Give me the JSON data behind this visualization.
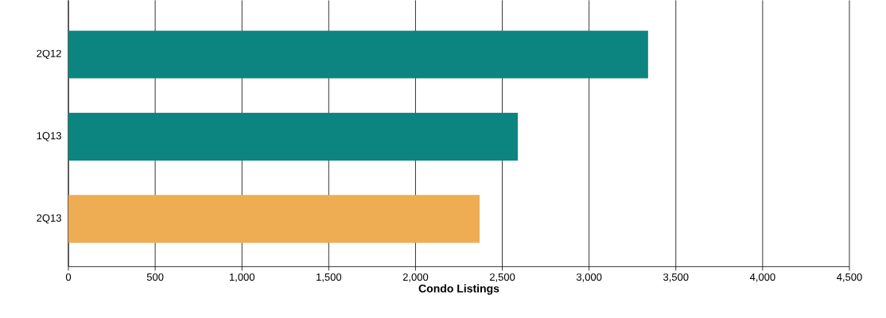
{
  "chart_data": {
    "type": "bar",
    "orientation": "horizontal",
    "xlabel": "Condo Listings",
    "categories": [
      "2Q12",
      "1Q13",
      "2Q13"
    ],
    "values": [
      3340,
      2590,
      2370
    ],
    "colors": [
      "#0c8580",
      "#0c8580",
      "#eeac53"
    ],
    "xlim": [
      0,
      4500
    ],
    "xticks": [
      0,
      500,
      {
        "value": 1000,
        "label": "1,000"
      },
      {
        "value": 1500,
        "label": "1,500"
      },
      {
        "value": 2000,
        "label": "2,000"
      },
      {
        "value": 2500,
        "label": "2,500"
      },
      {
        "value": 3000,
        "label": "3,000"
      },
      {
        "value": 3500,
        "label": "3,500"
      },
      {
        "value": 4000,
        "label": "4,000"
      },
      {
        "value": 4500,
        "label": "4,500"
      }
    ],
    "grid": "x"
  }
}
